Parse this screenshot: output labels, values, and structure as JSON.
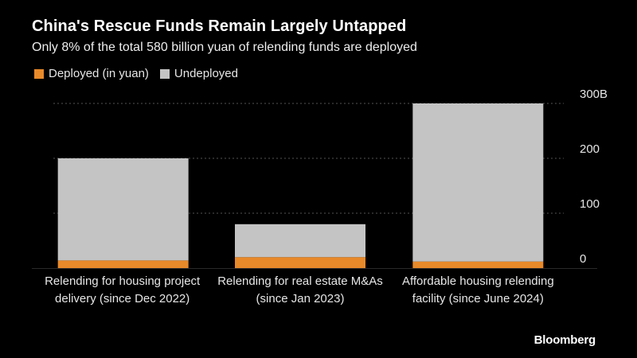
{
  "colors": {
    "deployed": "#e8892a",
    "undeployed": "#c4c4c4",
    "grid": "#555555",
    "text": "#ffffff",
    "axis_text": "#e6e6e6"
  },
  "chart_data": {
    "type": "bar",
    "stacked": true,
    "title": "China's Rescue Funds Remain Largely Untapped",
    "subtitle": "Only 8% of the total 580 billion yuan of relending funds are deployed",
    "categories": [
      [
        "Relending for housing project",
        "delivery (since Dec 2022)"
      ],
      [
        "Relending for real estate M&As",
        "(since Jan 2023)"
      ],
      [
        "Affordable housing relending",
        "facility (since June 2024)"
      ]
    ],
    "series": [
      {
        "name": "Deployed (in yuan)",
        "values": [
          14,
          20,
          12
        ]
      },
      {
        "name": "Undeployed",
        "values": [
          186,
          60,
          288
        ]
      }
    ],
    "ylim": [
      0,
      300
    ],
    "yticks": [
      0,
      100,
      200,
      300
    ],
    "ytick_labels": [
      "0",
      "100",
      "200",
      "300B"
    ],
    "grid": true,
    "legend_position": "top-left",
    "y_axis_side": "right"
  },
  "source": "Bloomberg"
}
